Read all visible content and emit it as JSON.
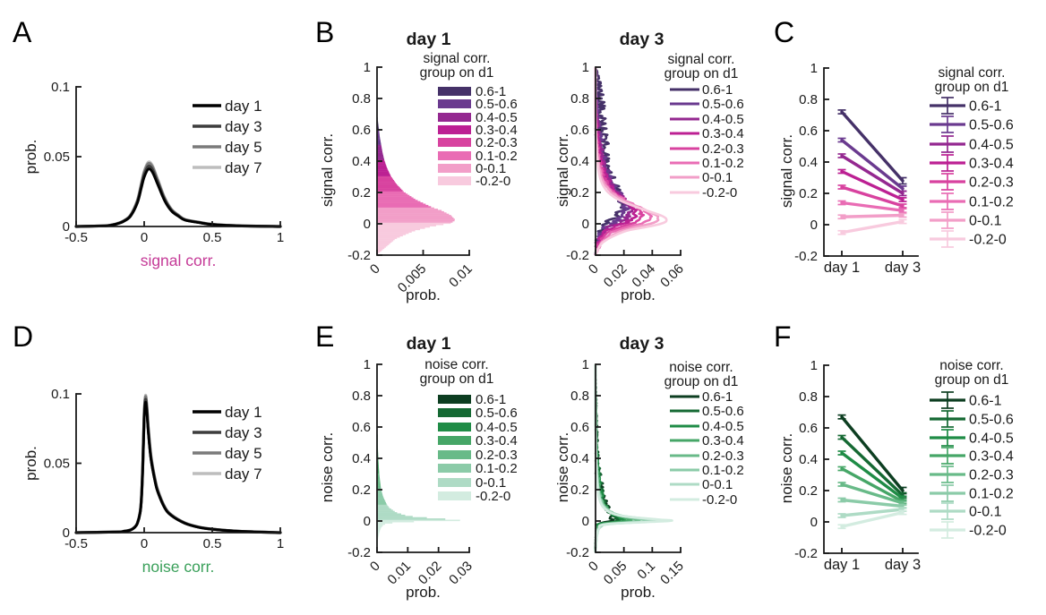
{
  "chart_data": {
    "letters": {
      "A": "A",
      "B": "B",
      "C": "C",
      "D": "D",
      "E": "E",
      "F": "F"
    },
    "day_labels": [
      "day 1",
      "day 3",
      "day 5",
      "day 7"
    ],
    "day_colors": [
      "#000000",
      "#3d3d3d",
      "#7a7a7a",
      "#bdbdbd"
    ],
    "group_labels": [
      "0.6-1",
      "0.5-0.6",
      "0.4-0.5",
      "0.3-0.4",
      "0.2-0.3",
      "0.1-0.2",
      "0-0.1",
      "-0.2-0"
    ],
    "palette_signal": [
      "#453168",
      "#6a3a8f",
      "#942890",
      "#bc2093",
      "#d8429f",
      "#e96cb4",
      "#f29ec8",
      "#f8cade"
    ],
    "palette_noise": [
      "#0d3e21",
      "#156933",
      "#1f8c46",
      "#46a667",
      "#68ba88",
      "#8bcba8",
      "#aedbc5",
      "#d3ece0"
    ],
    "signal_label_color": "#c53a97",
    "noise_label_color": "#3aa05a",
    "panels": {
      "A": {
        "type": "line",
        "ylabel": "prob.",
        "xlabel": "signal corr.",
        "xlim": [
          -0.5,
          1
        ],
        "ylim": [
          0,
          0.1
        ],
        "xticks": [
          -0.5,
          0,
          0.5,
          1
        ],
        "xtick_labels": [
          "-0.5",
          "0",
          "0.5",
          "1"
        ],
        "yticks": [
          0,
          0.05,
          0.1
        ],
        "ytick_labels": [
          "0",
          "0.05",
          "0.1"
        ],
        "legend": [
          "day 1",
          "day 3",
          "day 5",
          "day 7"
        ],
        "x": [
          -0.5,
          -0.3,
          -0.25,
          -0.2,
          -0.15,
          -0.1,
          -0.05,
          -0.02,
          0,
          0.03,
          0.06,
          0.1,
          0.15,
          0.2,
          0.25,
          0.3,
          0.4,
          0.5,
          0.7,
          1
        ],
        "shape": [
          0,
          0.01,
          0.02,
          0.045,
          0.09,
          0.18,
          0.41,
          0.68,
          0.86,
          1,
          0.95,
          0.73,
          0.45,
          0.27,
          0.18,
          0.11,
          0.068,
          0.034,
          0.011,
          0
        ],
        "peaks": [
          0.041,
          0.043,
          0.045,
          0.046
        ]
      },
      "D": {
        "type": "line",
        "ylabel": "prob.",
        "xlabel": "noise corr.",
        "xlim": [
          -0.5,
          1
        ],
        "ylim": [
          0,
          0.1
        ],
        "xticks": [
          -0.5,
          0,
          0.5,
          1
        ],
        "xtick_labels": [
          "-0.5",
          "0",
          "0.5",
          "1"
        ],
        "yticks": [
          0,
          0.05,
          0.1
        ],
        "ytick_labels": [
          "0",
          "0.05",
          "0.1"
        ],
        "legend": [
          "day 1",
          "day 3",
          "day 5",
          "day 7"
        ],
        "x": [
          -0.5,
          -0.2,
          -0.15,
          -0.1,
          -0.07,
          -0.05,
          -0.03,
          -0.02,
          -0.01,
          0,
          0.01,
          0.02,
          0.03,
          0.05,
          0.08,
          0.1,
          0.15,
          0.2,
          0.3,
          0.4,
          0.5,
          0.7,
          1
        ],
        "shape": [
          0,
          0.005,
          0.01,
          0.02,
          0.04,
          0.07,
          0.15,
          0.26,
          0.51,
          0.87,
          1,
          0.92,
          0.77,
          0.56,
          0.39,
          0.31,
          0.19,
          0.13,
          0.071,
          0.041,
          0.026,
          0.01,
          0
        ],
        "peaks": [
          0.094,
          0.096,
          0.098,
          0.099
        ]
      },
      "B1": {
        "type": "filled_dist",
        "title": "day 1",
        "ylabel": "signal corr.",
        "xlabel": "prob.",
        "xlim": [
          0,
          0.01
        ],
        "xticks": [
          0,
          0.005,
          0.01
        ],
        "xtick_labels": [
          "0",
          "0.005",
          "0.01"
        ],
        "ylim": [
          -0.2,
          1
        ],
        "yticks": [
          1,
          0.8,
          0.6,
          0.4,
          0.2,
          0,
          -0.2
        ],
        "ytick_labels": [
          "1",
          "0.8",
          "0.6",
          "0.4",
          "0.2",
          "0",
          "-0.2"
        ],
        "legend_title": [
          "signal corr.",
          "group on d1"
        ],
        "dist_y": [
          -0.2,
          -0.15,
          -0.1,
          -0.05,
          -0.02,
          0,
          0.02,
          0.05,
          0.08,
          0.1,
          0.15,
          0.2,
          0.25,
          0.3,
          0.35,
          0.4,
          0.45,
          0.5,
          0.55,
          0.6,
          0.65,
          0.68,
          1
        ],
        "dist_p": [
          0,
          0.001,
          0.002,
          0.004,
          0.006,
          0.008,
          0.0085,
          0.008,
          0.007,
          0.006,
          0.0042,
          0.0029,
          0.0021,
          0.0015,
          0.0011,
          0.0008,
          0.0006,
          0.00045,
          0.0003,
          0.0002,
          0.0001,
          0,
          0
        ]
      },
      "B3": {
        "type": "multi_dist",
        "title": "day 3",
        "ylabel": "signal corr.",
        "xlabel": "prob.",
        "xlim": [
          0,
          0.06
        ],
        "xticks": [
          0,
          0.02,
          0.04,
          0.06
        ],
        "xtick_labels": [
          "0",
          "0.02",
          "0.04",
          "0.06"
        ],
        "ylim": [
          -0.2,
          1
        ],
        "yticks": [
          1,
          0.8,
          0.6,
          0.4,
          0.2,
          0,
          -0.2
        ],
        "ytick_labels": [
          "1",
          "0.8",
          "0.6",
          "0.4",
          "0.2",
          "0",
          "-0.2"
        ],
        "legend_title": [
          "signal corr.",
          "group on d1"
        ],
        "y": [
          -0.2,
          -0.12,
          -0.05,
          -0.02,
          0,
          0.02,
          0.05,
          0.1,
          0.15,
          0.2,
          0.25,
          0.3,
          0.4,
          0.5,
          0.6,
          0.7,
          0.8,
          0.9,
          1
        ],
        "jitter": [
          0.0035,
          0.003,
          0.0025,
          0.002,
          0.0014,
          0.0009,
          0.0004,
          0
        ],
        "series": [
          {
            "label": "0.6-1",
            "p": [
              0,
              0.0009,
              0.0028,
              0.0055,
              0.0085,
              0.011,
              0.015,
              0.018,
              0.018,
              0.016,
              0.0135,
              0.0115,
              0.0085,
              0.0065,
              0.0048,
              0.0036,
              0.0027,
              0.0019,
              0
            ]
          },
          {
            "label": "0.5-0.6",
            "p": [
              0,
              0.0013,
              0.0042,
              0.008,
              0.012,
              0.015,
              0.019,
              0.021,
              0.019,
              0.0155,
              0.0115,
              0.0085,
              0.0052,
              0.0032,
              0.0019,
              0.0011,
              0.0006,
              0.0003,
              0
            ]
          },
          {
            "label": "0.4-0.5",
            "p": [
              0,
              0.0018,
              0.0055,
              0.01,
              0.016,
              0.02,
              0.024,
              0.025,
              0.02,
              0.015,
              0.0105,
              0.0075,
              0.0042,
              0.0023,
              0.0013,
              0.0007,
              0.0003,
              0,
              0
            ]
          },
          {
            "label": "0.3-0.4",
            "p": [
              0,
              0.0022,
              0.007,
              0.013,
              0.02,
              0.024,
              0.028,
              0.027,
              0.021,
              0.014,
              0.0095,
              0.0065,
              0.0033,
              0.0018,
              0.0009,
              0.0004,
              0,
              0,
              0
            ]
          },
          {
            "label": "0.2-0.3",
            "p": [
              0,
              0.003,
              0.009,
              0.017,
              0.025,
              0.03,
              0.033,
              0.03,
              0.021,
              0.013,
              0.0085,
              0.0055,
              0.0028,
              0.0013,
              0.0006,
              0,
              0,
              0,
              0
            ]
          },
          {
            "label": "0.1-0.2",
            "p": [
              0,
              0.0035,
              0.012,
              0.022,
              0.032,
              0.037,
              0.039,
              0.032,
              0.021,
              0.012,
              0.0075,
              0.0045,
              0.0022,
              0.001,
              0.0004,
              0,
              0,
              0,
              0
            ]
          },
          {
            "label": "0-0.1",
            "p": [
              0,
              0.004,
              0.016,
              0.028,
              0.039,
              0.044,
              0.044,
              0.032,
              0.019,
              0.011,
              0.0065,
              0.004,
              0.0018,
              0.0008,
              0.0003,
              0,
              0,
              0,
              0
            ]
          },
          {
            "label": "-0.2-0",
            "p": [
              0,
              0.005,
              0.02,
              0.036,
              0.046,
              0.05,
              0.047,
              0.031,
              0.017,
              0.009,
              0.005,
              0.003,
              0.0013,
              0.0006,
              0,
              0,
              0,
              0,
              0
            ]
          }
        ]
      },
      "E1": {
        "type": "filled_dist",
        "title": "day 1",
        "ylabel": "noise corr.",
        "xlabel": "prob.",
        "xlim": [
          0,
          0.03
        ],
        "xticks": [
          0,
          0.01,
          0.02,
          0.03
        ],
        "xtick_labels": [
          "0",
          "0.01",
          "0.02",
          "0.03"
        ],
        "ylim": [
          -0.2,
          1
        ],
        "yticks": [
          1,
          0.8,
          0.6,
          0.4,
          0.2,
          0,
          -0.2
        ],
        "ytick_labels": [
          "1",
          "0.8",
          "0.6",
          "0.4",
          "0.2",
          "0",
          "-0.2"
        ],
        "legend_title": [
          "noise corr.",
          "group on d1"
        ],
        "dist_y": [
          -0.2,
          -0.12,
          -0.08,
          -0.05,
          -0.03,
          -0.02,
          -0.01,
          -0.005,
          0,
          0.01,
          0.02,
          0.03,
          0.05,
          0.08,
          0.1,
          0.15,
          0.2,
          0.3,
          0.4,
          0.5,
          0.55,
          1
        ],
        "dist_p": [
          0,
          0.0003,
          0.0007,
          0.0012,
          0.002,
          0.003,
          0.008,
          0.018,
          0.027,
          0.021,
          0.013,
          0.0095,
          0.0062,
          0.004,
          0.0032,
          0.002,
          0.0013,
          0.0007,
          0.0004,
          0.0002,
          0,
          0
        ]
      },
      "E3": {
        "type": "multi_dist",
        "title": "day 3",
        "ylabel": "noise corr.",
        "xlabel": "prob.",
        "xlim": [
          0,
          0.15
        ],
        "xticks": [
          0,
          0.05,
          0.1,
          0.15
        ],
        "xtick_labels": [
          "0",
          "0.05",
          "0.1",
          "0.15"
        ],
        "ylim": [
          -0.2,
          1
        ],
        "yticks": [
          1,
          0.8,
          0.6,
          0.4,
          0.2,
          0,
          -0.2
        ],
        "ytick_labels": [
          "1",
          "0.8",
          "0.6",
          "0.4",
          "0.2",
          "0",
          "-0.2"
        ],
        "legend_title": [
          "noise corr.",
          "group on d1"
        ],
        "y": [
          -0.2,
          -0.1,
          -0.05,
          -0.02,
          0,
          0.01,
          0.03,
          0.05,
          0.08,
          0.1,
          0.15,
          0.2,
          0.3,
          0.4,
          0.5,
          0.7,
          1
        ],
        "jitter": [
          0.006,
          0.005,
          0.004,
          0.003,
          0.002,
          0.0012,
          0.0006,
          0
        ],
        "series": [
          {
            "label": "0.6-1",
            "p": [
              0,
              0.0005,
              0.001,
              0.003,
              0.031,
              0.032,
              0.029,
              0.025,
              0.02,
              0.017,
              0.013,
              0.01,
              0.006,
              0.004,
              0.0022,
              0.001,
              0
            ]
          },
          {
            "label": "0.5-0.6",
            "p": [
              0,
              0.0006,
              0.0015,
              0.004,
              0.04,
              0.04,
              0.034,
              0.027,
              0.02,
              0.016,
              0.012,
              0.0085,
              0.005,
              0.003,
              0.0017,
              0.0008,
              0
            ]
          },
          {
            "label": "0.4-0.5",
            "p": [
              0,
              0.0008,
              0.002,
              0.005,
              0.05,
              0.049,
              0.038,
              0.028,
              0.02,
              0.016,
              0.011,
              0.0075,
              0.004,
              0.0025,
              0.0013,
              0.0006,
              0
            ]
          },
          {
            "label": "0.3-0.4",
            "p": [
              0,
              0.001,
              0.0025,
              0.007,
              0.062,
              0.06,
              0.042,
              0.029,
              0.02,
              0.015,
              0.01,
              0.0065,
              0.0035,
              0.002,
              0.001,
              0.0005,
              0
            ]
          },
          {
            "label": "0.2-0.3",
            "p": [
              0,
              0.001,
              0.003,
              0.009,
              0.078,
              0.073,
              0.045,
              0.03,
              0.019,
              0.014,
              0.009,
              0.006,
              0.003,
              0.0016,
              0.0008,
              0,
              0
            ]
          },
          {
            "label": "0.1-0.2",
            "p": [
              0,
              0.0015,
              0.004,
              0.012,
              0.095,
              0.087,
              0.048,
              0.03,
              0.018,
              0.013,
              0.008,
              0.005,
              0.0025,
              0.0013,
              0.0007,
              0,
              0
            ]
          },
          {
            "label": "0-0.1",
            "p": [
              0,
              0.002,
              0.005,
              0.015,
              0.112,
              0.1,
              0.05,
              0.03,
              0.017,
              0.012,
              0.007,
              0.0045,
              0.0022,
              0.0012,
              0.0006,
              0,
              0
            ]
          },
          {
            "label": "-0.2-0",
            "p": [
              0,
              0.002,
              0.006,
              0.02,
              0.13,
              0.11,
              0.05,
              0.028,
              0.016,
              0.011,
              0.006,
              0.004,
              0.002,
              0.001,
              0.0005,
              0,
              0
            ]
          }
        ]
      },
      "C": {
        "type": "slope",
        "ylabel": "signal corr.",
        "ylim": [
          -0.2,
          1
        ],
        "yticks": [
          1,
          0.8,
          0.6,
          0.4,
          0.2,
          0,
          -0.2
        ],
        "ytick_labels": [
          "1",
          "0.8",
          "0.6",
          "0.4",
          "0.2",
          "0",
          "-0.2"
        ],
        "xtick_labels": [
          "day 1",
          "day 3"
        ],
        "legend_title": [
          "signal corr.",
          "group on d1"
        ],
        "d1": [
          0.72,
          0.54,
          0.44,
          0.34,
          0.24,
          0.14,
          0.05,
          -0.05
        ],
        "d3": [
          0.28,
          0.23,
          0.2,
          0.16,
          0.12,
          0.09,
          0.06,
          0.02
        ],
        "e1": [
          0.012,
          0.01,
          0.009,
          0.008,
          0.007,
          0.006,
          0.006,
          0.007
        ],
        "e3": [
          0.02,
          0.016,
          0.014,
          0.012,
          0.011,
          0.01,
          0.01,
          0.012
        ]
      },
      "F": {
        "type": "slope",
        "ylabel": "noise corr.",
        "ylim": [
          -0.2,
          1
        ],
        "yticks": [
          1,
          0.8,
          0.6,
          0.4,
          0.2,
          0,
          -0.2
        ],
        "ytick_labels": [
          "1",
          "0.8",
          "0.6",
          "0.4",
          "0.2",
          "0",
          "-0.2"
        ],
        "xtick_labels": [
          "day 1",
          "day 3"
        ],
        "legend_title": [
          "noise corr.",
          "group on d1"
        ],
        "d1": [
          0.67,
          0.54,
          0.44,
          0.34,
          0.24,
          0.14,
          0.04,
          -0.03
        ],
        "d3": [
          0.2,
          0.17,
          0.15,
          0.13,
          0.12,
          0.1,
          0.08,
          0.06
        ],
        "e1": [
          0.012,
          0.01,
          0.009,
          0.008,
          0.007,
          0.006,
          0.006,
          0.007
        ],
        "e3": [
          0.02,
          0.016,
          0.014,
          0.012,
          0.011,
          0.01,
          0.01,
          0.012
        ]
      }
    }
  }
}
